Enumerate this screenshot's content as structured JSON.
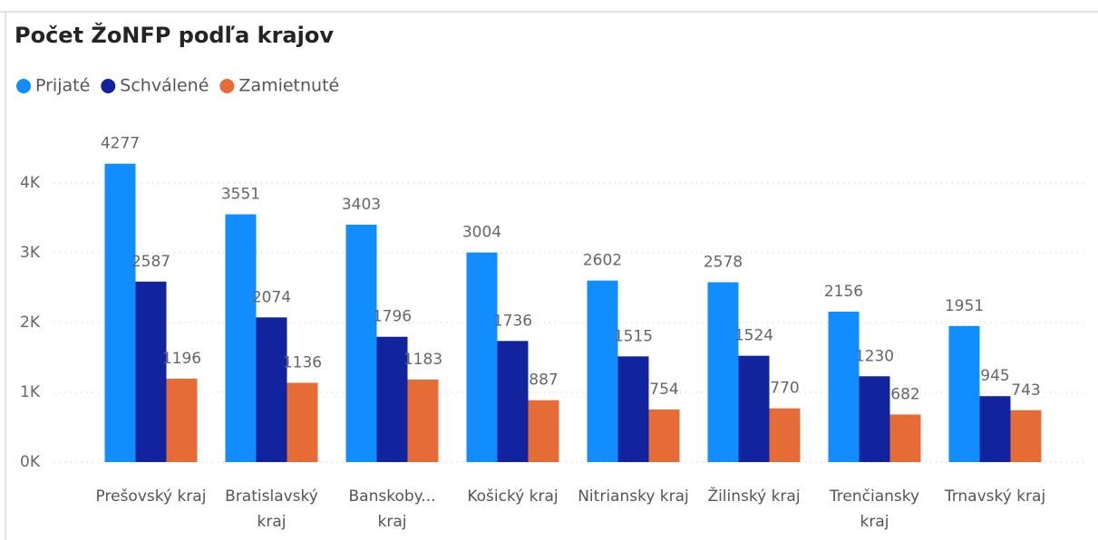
{
  "chart_data": {
    "type": "bar",
    "title": "Počet ŽoNFP podľa krajov",
    "categories": [
      "Prešovský kraj",
      "Bratislavský kraj",
      "Banskoby... kraj",
      "Košický kraj",
      "Nitriansky kraj",
      "Žilinský kraj",
      "Trenčiansky kraj",
      "Trnavský kraj"
    ],
    "series": [
      {
        "name": "Prijaté",
        "color": "#118DFF",
        "values": [
          4277,
          3551,
          3403,
          3004,
          2602,
          2578,
          2156,
          1951
        ]
      },
      {
        "name": "Schválené",
        "color": "#12239E",
        "values": [
          2587,
          2074,
          1796,
          1736,
          1515,
          1524,
          1230,
          945
        ]
      },
      {
        "name": "Zamietnuté",
        "color": "#E66C37",
        "values": [
          1196,
          1136,
          1183,
          887,
          754,
          770,
          682,
          743
        ]
      }
    ],
    "ylim": [
      0,
      4800
    ],
    "yticks": [
      {
        "value": 0,
        "label": "0K"
      },
      {
        "value": 1000,
        "label": "1K"
      },
      {
        "value": 2000,
        "label": "2K"
      },
      {
        "value": 3000,
        "label": "3K"
      },
      {
        "value": 4000,
        "label": "4K"
      }
    ],
    "grid": true,
    "legend": "top-left"
  }
}
